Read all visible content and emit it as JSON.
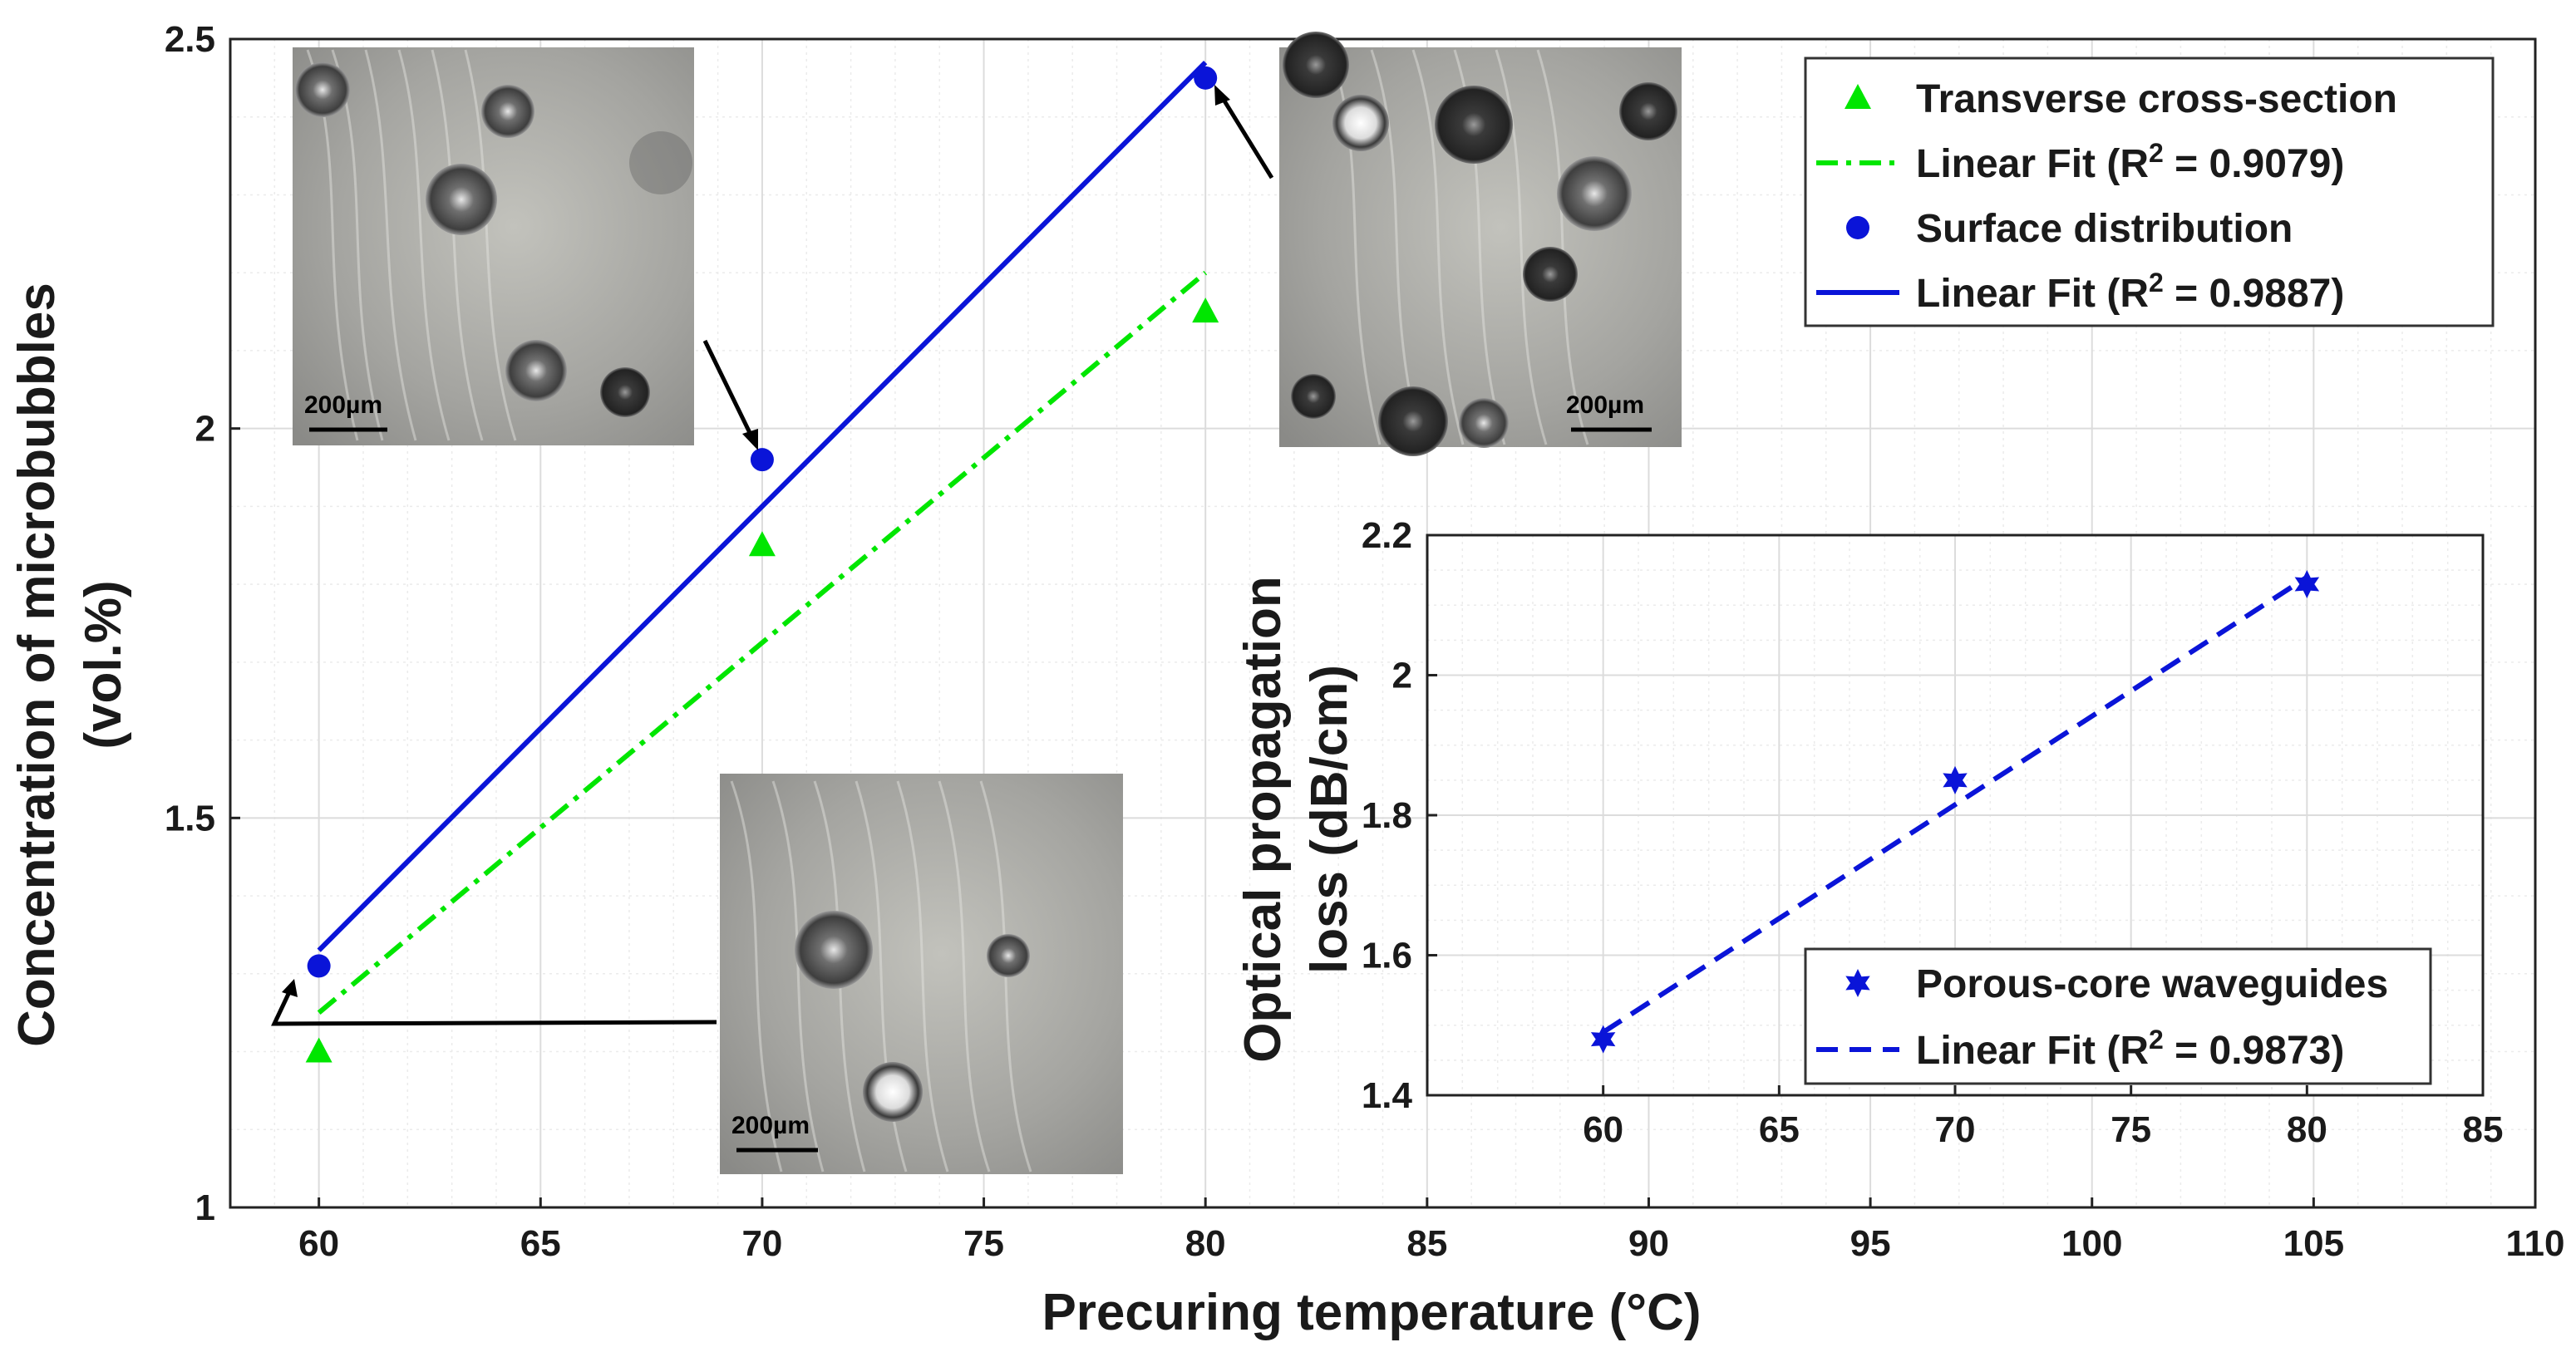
{
  "colors": {
    "green": "#00e600",
    "blue": "#0a14d8",
    "grid": "#dcdcdc",
    "axis": "#222222",
    "micro_bg": "#a9a9a3"
  },
  "chart_data": [
    {
      "id": "main",
      "type": "scatter",
      "xlabel": "Precuring temperature (°C)",
      "ylabel_line1": "Concentration of microbubbles",
      "ylabel_line2": "(vol.%)",
      "xlim": [
        58,
        110
      ],
      "ylim": [
        1,
        2.5
      ],
      "xticks": [
        60,
        65,
        70,
        75,
        80,
        85,
        90,
        95,
        100,
        105,
        110
      ],
      "yticks": [
        1,
        1.5,
        2,
        2.5
      ],
      "ytick_labels": [
        "1",
        "1.5",
        "2",
        "2.5"
      ],
      "grid": true,
      "legend_position": "top-right",
      "series": [
        {
          "name": "Transverse cross-section",
          "kind": "points",
          "marker": "triangle",
          "color": "green",
          "x": [
            60,
            70,
            80
          ],
          "y": [
            1.2,
            1.85,
            2.15
          ]
        },
        {
          "name": "Linear Fit (R",
          "sup": "2",
          "suffix": " = 0.9079)",
          "kind": "line",
          "style": "dashdot",
          "color": "green",
          "x": [
            60,
            80
          ],
          "y": [
            1.25,
            2.2
          ]
        },
        {
          "name": "Surface distribution",
          "kind": "points",
          "marker": "circle",
          "color": "blue",
          "x": [
            60,
            70,
            80
          ],
          "y": [
            1.31,
            1.96,
            2.45
          ]
        },
        {
          "name": "Linear Fit (R",
          "sup": "2",
          "suffix": " = 0.9887)",
          "kind": "line",
          "style": "solid",
          "color": "blue",
          "x": [
            60,
            80
          ],
          "y": [
            1.33,
            2.47
          ]
        }
      ],
      "annotations": [
        {
          "label": "200µm"
        },
        {
          "label": "200µm"
        },
        {
          "label": "200µm"
        }
      ]
    },
    {
      "id": "inset",
      "type": "scatter",
      "ylabel_line1": "Optical propagation",
      "ylabel_line2": "loss (dB/cm)",
      "xlim": [
        55,
        85
      ],
      "ylim": [
        1.4,
        2.2
      ],
      "xticks": [
        60,
        65,
        70,
        75,
        80,
        85
      ],
      "yticks": [
        1.4,
        1.6,
        1.8,
        2,
        2.2
      ],
      "ytick_labels": [
        "1.4",
        "1.6",
        "1.8",
        "2",
        "2.2"
      ],
      "grid": true,
      "legend_position": "bottom-right",
      "series": [
        {
          "name": "Porous-core waveguides",
          "kind": "points",
          "marker": "star",
          "color": "blue",
          "x": [
            60,
            70,
            80
          ],
          "y": [
            1.48,
            1.85,
            2.13
          ]
        },
        {
          "name": "Linear Fit (R",
          "sup": "2",
          "suffix": " = 0.9873)",
          "kind": "line",
          "style": "dashed",
          "color": "blue",
          "x": [
            60,
            80
          ],
          "y": [
            1.49,
            2.14
          ]
        }
      ]
    }
  ]
}
